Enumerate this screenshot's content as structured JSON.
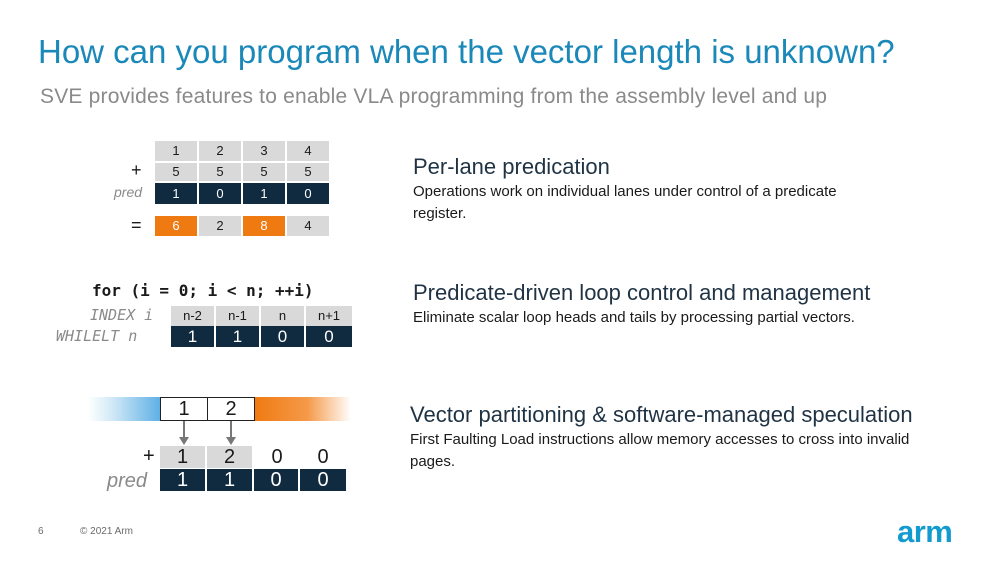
{
  "title": "How can you program when the vector length is unknown?",
  "subtitle": "SVE provides features to enable VLA programming from the assembly level and up",
  "sections": [
    {
      "heading": "Per-lane predication",
      "body": "Operations work on individual lanes under control of a predicate register."
    },
    {
      "heading": "Predicate-driven loop control and management",
      "body": "Eliminate scalar loop heads and tails by processing partial vectors."
    },
    {
      "heading": "Vector partitioning & software-managed speculation",
      "body": "First Faulting Load instructions allow memory accesses to cross into invalid pages."
    }
  ],
  "diagram1": {
    "row1": [
      "1",
      "2",
      "3",
      "4"
    ],
    "plus": "+",
    "row2": [
      "5",
      "5",
      "5",
      "5"
    ],
    "pred_label": "pred",
    "pred": [
      "1",
      "0",
      "1",
      "0"
    ],
    "equals": "=",
    "result": [
      "6",
      "2",
      "8",
      "4"
    ]
  },
  "diagram2": {
    "code": "for (i = 0; i < n; ++i)",
    "index_label": "INDEX i",
    "index": [
      "n-2",
      "n-1",
      "n",
      "n+1"
    ],
    "whilelt_label": "WHILELT n",
    "whilelt": [
      "1",
      "1",
      "0",
      "0"
    ]
  },
  "diagram3": {
    "mem": [
      "1",
      "2"
    ],
    "plus": "+",
    "vec": [
      "1",
      "2",
      "0",
      "0"
    ],
    "pred_label": "pred",
    "pred": [
      "1",
      "1",
      "0",
      "0"
    ]
  },
  "colors": {
    "title": "#1a88b8",
    "accent": "#f07a12",
    "dark": "#102a40",
    "logo": "#139bd0"
  },
  "footer": {
    "page": "6",
    "copyright": "© 2021 Arm",
    "logo": "arm"
  }
}
